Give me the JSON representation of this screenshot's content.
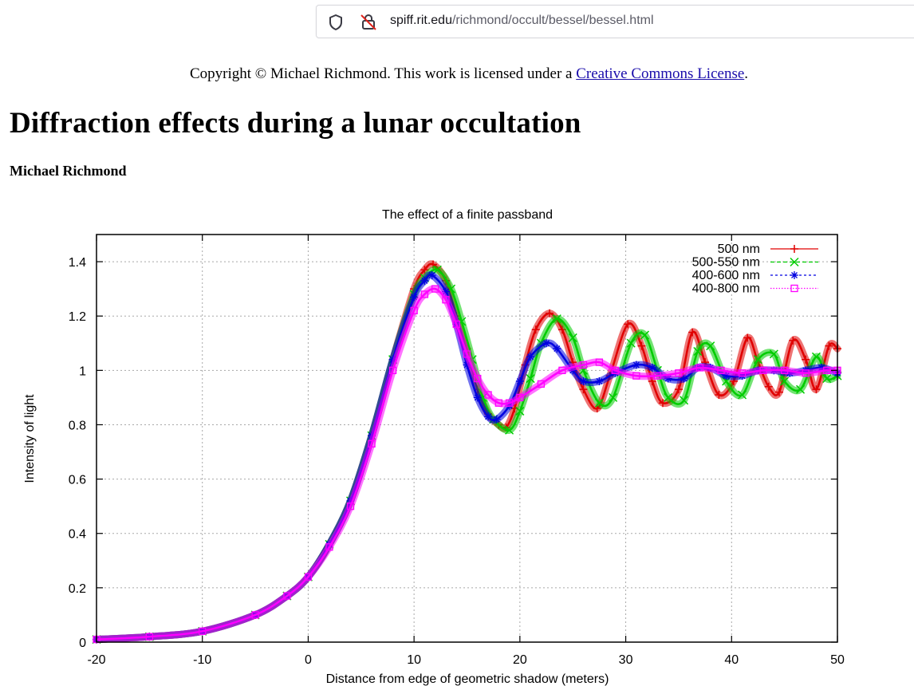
{
  "browser": {
    "url_domain": "spiff.rit.edu",
    "url_path": "/richmond/occult/bessel/bessel.html"
  },
  "page": {
    "copyright_prefix": "Copyright © Michael Richmond. This work is licensed under a ",
    "license_link": "Creative Commons License",
    "copyright_suffix": ".",
    "title": "Diffraction effects during a lunar occultation",
    "author": "Michael Richmond"
  },
  "chart_data": {
    "type": "line",
    "title": "The effect of a finite passband",
    "xlabel": "Distance from edge of geometric shadow (meters)",
    "ylabel": "Intensity of light",
    "xlim": [
      -20,
      50
    ],
    "ylim": [
      0,
      1.5
    ],
    "xticks": [
      -20,
      -10,
      0,
      10,
      20,
      30,
      40,
      50
    ],
    "yticks": [
      0,
      0.2,
      0.4,
      0.6,
      0.8,
      1,
      1.2,
      1.4
    ],
    "grid": true,
    "legend_position": "top-right",
    "series": [
      {
        "name": "500 nm",
        "color": "#e00000",
        "marker": "plus",
        "x": [
          -20,
          -15,
          -10,
          -5,
          -2,
          0,
          2,
          4,
          6,
          8,
          10,
          11,
          11.8,
          13,
          14,
          15,
          16,
          17,
          18,
          18.7,
          19.5,
          20.5,
          21.5,
          22.8,
          24,
          25,
          26,
          27.3,
          28.5,
          30.2,
          31.5,
          32.5,
          33.5,
          35,
          36.3,
          37.5,
          38.8,
          40.2,
          41.5,
          42.5,
          43.5,
          44.5,
          45.8,
          47,
          48,
          49.2,
          50
        ],
        "y": [
          0.01,
          0.02,
          0.04,
          0.1,
          0.17,
          0.24,
          0.36,
          0.52,
          0.76,
          1.04,
          1.3,
          1.37,
          1.39,
          1.33,
          1.2,
          1.08,
          0.93,
          0.84,
          0.8,
          0.79,
          0.86,
          1.02,
          1.15,
          1.21,
          1.15,
          1.03,
          0.93,
          0.86,
          0.98,
          1.17,
          1.09,
          0.96,
          0.88,
          0.93,
          1.14,
          1.03,
          0.91,
          0.96,
          1.12,
          1.03,
          0.94,
          0.92,
          1.11,
          1.04,
          0.93,
          1.09,
          1.08
        ]
      },
      {
        "name": "500-550 nm",
        "color": "#00cc00",
        "marker": "cross",
        "x": [
          -20,
          -15,
          -10,
          -5,
          -2,
          0,
          2,
          4,
          6,
          8,
          10,
          11,
          12.2,
          13.5,
          14.5,
          15.5,
          16.5,
          17.5,
          19,
          20,
          21,
          22,
          23.5,
          25,
          26,
          27.5,
          28.8,
          30.5,
          31.8,
          33,
          34,
          35.5,
          36.8,
          38,
          39.5,
          41,
          42.5,
          44,
          45,
          46.5,
          48,
          49,
          50
        ],
        "y": [
          0.01,
          0.02,
          0.04,
          0.1,
          0.17,
          0.24,
          0.36,
          0.52,
          0.76,
          1.04,
          1.28,
          1.34,
          1.37,
          1.3,
          1.18,
          1.04,
          0.9,
          0.82,
          0.78,
          0.85,
          0.97,
          1.1,
          1.19,
          1.12,
          1.0,
          0.88,
          0.9,
          1.1,
          1.13,
          1.0,
          0.9,
          0.89,
          1.07,
          1.09,
          0.96,
          0.91,
          1.04,
          1.06,
          0.96,
          0.93,
          1.05,
          0.97,
          0.98
        ]
      },
      {
        "name": "400-600 nm",
        "color": "#0000e0",
        "marker": "star",
        "x": [
          -20,
          -15,
          -10,
          -5,
          -2,
          0,
          2,
          4,
          6,
          8,
          10,
          11,
          11.7,
          13,
          14,
          15,
          16,
          17,
          17.8,
          19,
          20,
          21,
          22.5,
          23.5,
          25,
          26,
          27.5,
          29,
          31,
          32.5,
          34,
          35.5,
          36.8,
          38,
          39.5,
          41,
          42.5,
          44,
          45.5,
          47,
          48.5,
          50
        ],
        "y": [
          0.01,
          0.02,
          0.04,
          0.1,
          0.17,
          0.24,
          0.36,
          0.52,
          0.76,
          1.04,
          1.27,
          1.33,
          1.35,
          1.29,
          1.17,
          1.02,
          0.9,
          0.83,
          0.82,
          0.87,
          0.96,
          1.05,
          1.1,
          1.08,
          1.0,
          0.96,
          0.96,
          0.99,
          1.02,
          1.01,
          0.97,
          0.97,
          1.01,
          1.01,
          0.98,
          0.98,
          1.0,
          1.0,
          0.99,
          1.0,
          1.01,
          0.99
        ]
      },
      {
        "name": "400-800 nm",
        "color": "#ff00ff",
        "marker": "square",
        "x": [
          -20,
          -15,
          -10,
          -5,
          -2,
          0,
          2,
          4,
          6,
          8,
          10,
          11,
          12,
          13,
          14,
          15,
          16,
          17,
          18,
          19,
          20,
          22,
          24,
          26,
          27.5,
          29,
          31,
          33,
          35,
          37,
          39,
          41,
          43,
          45,
          47,
          49,
          50
        ],
        "y": [
          0.01,
          0.02,
          0.04,
          0.1,
          0.17,
          0.24,
          0.35,
          0.5,
          0.73,
          1.0,
          1.22,
          1.28,
          1.3,
          1.26,
          1.17,
          1.06,
          0.97,
          0.91,
          0.88,
          0.88,
          0.9,
          0.95,
          1.0,
          1.02,
          1.03,
          1.0,
          0.98,
          0.98,
          0.99,
          1.01,
          1.0,
          0.99,
          1.0,
          1.0,
          0.99,
          1.0,
          1.0
        ]
      }
    ]
  }
}
